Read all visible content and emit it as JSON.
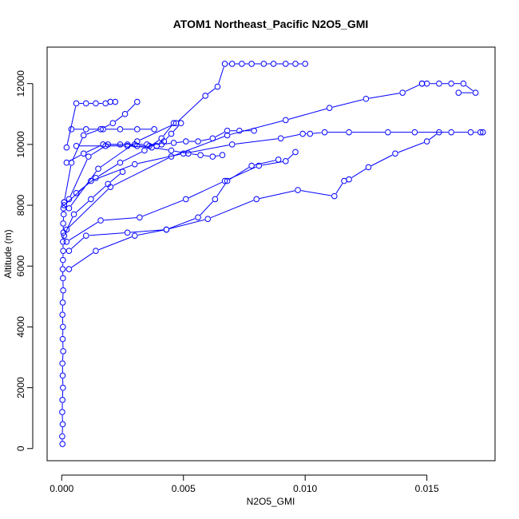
{
  "chart_data": {
    "type": "line",
    "title": "ATOM1 Northeast_Pacific N2O5_GMI",
    "xlabel": "N2O5_GMI",
    "ylabel": "Altitude (m)",
    "xlim": [
      -0.0006,
      0.0178
    ],
    "ylim": [
      -400,
      13200
    ],
    "x_ticks": [
      0.0,
      0.005,
      0.01,
      0.015
    ],
    "x_tick_labels": [
      "0.000",
      "0.005",
      "0.010",
      "0.015"
    ],
    "y_ticks": [
      0,
      2000,
      4000,
      6000,
      8000,
      10000,
      12000
    ],
    "y_tick_labels": [
      "0",
      "2000",
      "4000",
      "6000",
      "8000",
      "10000",
      "12000"
    ],
    "grid": false,
    "style": {
      "color": "#0000ff",
      "marker": "open-circle",
      "line": "solid"
    },
    "series": [
      {
        "x": [
          3e-05,
          2e-05,
          4e-05,
          2e-05,
          3e-05,
          5e-05,
          4e-05,
          3e-05,
          6e-05,
          4e-05,
          5e-05,
          3e-05,
          4e-05,
          6e-05,
          5e-05,
          4e-05,
          5e-05,
          6e-05,
          5e-05,
          7e-05,
          6e-05,
          8e-05,
          7e-05,
          0.0001
        ],
        "y": [
          150,
          400,
          800,
          1200,
          1600,
          2000,
          2400,
          2800,
          3200,
          3600,
          4000,
          4400,
          4800,
          5200,
          5600,
          5900,
          6200,
          6500,
          6800,
          7100,
          7400,
          7700,
          7900,
          8100
        ]
      },
      {
        "x": [
          0.0001,
          0.0004,
          0.0009,
          0.0016,
          0.0021,
          0.0026,
          0.0031
        ],
        "y": [
          8100,
          9400,
          10300,
          10500,
          10700,
          11000,
          11400
        ]
      },
      {
        "x": [
          0.0002,
          0.0006,
          0.001,
          0.0014,
          0.0018,
          0.002,
          0.0022
        ],
        "y": [
          9900,
          11350,
          11350,
          11350,
          11350,
          11400,
          11400
        ]
      },
      {
        "x": [
          0.0002,
          0.0009,
          0.0017,
          0.0024,
          0.003,
          0.0035,
          0.0041,
          0.0046,
          0.0051,
          0.0056,
          0.0062,
          0.0068,
          0.0073,
          0.0079
        ],
        "y": [
          9400,
          9700,
          10000,
          10000,
          10000,
          10000,
          10000,
          10050,
          10100,
          10100,
          10200,
          10450,
          10450,
          10450
        ]
      },
      {
        "x": [
          0.0003,
          0.0011,
          0.0019,
          0.0027,
          0.0031,
          0.0036,
          0.0039,
          0.0042,
          0.0045,
          0.0049
        ],
        "y": [
          8200,
          9600,
          10000,
          10000,
          9950,
          9950,
          9950,
          10100,
          10350,
          10700
        ]
      },
      {
        "x": [
          0.0003,
          0.0015,
          0.0031,
          0.0047,
          0.0059,
          0.0064,
          0.0067,
          0.007,
          0.0074,
          0.0078,
          0.0083,
          0.0087,
          0.0092,
          0.0096,
          0.01
        ],
        "y": [
          7900,
          9200,
          10100,
          10700,
          11600,
          11900,
          12650,
          12650,
          12650,
          12650,
          12650,
          12650,
          12650,
          12650,
          12650
        ]
      },
      {
        "x": [
          0.0002,
          0.002,
          0.0045,
          0.0068,
          0.0092,
          0.011,
          0.0125,
          0.014,
          0.0148
        ],
        "y": [
          7200,
          8600,
          9600,
          10300,
          10800,
          11200,
          11500,
          11700,
          12000
        ]
      },
      {
        "x": [
          0.0148,
          0.015,
          0.0155,
          0.016,
          0.0165,
          0.017,
          0.0163
        ],
        "y": [
          12000,
          12000,
          12000,
          12000,
          12000,
          11700,
          11700
        ]
      },
      {
        "x": [
          0.0001,
          0.0012,
          0.003,
          0.005,
          0.007,
          0.009,
          0.0099,
          0.0102,
          0.0108,
          0.0118,
          0.0134,
          0.0145,
          0.016,
          0.0168,
          0.0172,
          0.0173
        ],
        "y": [
          8000,
          8800,
          9350,
          9700,
          10000,
          10200,
          10350,
          10350,
          10400,
          10400,
          10400,
          10400,
          10400,
          10400,
          10400,
          10400
        ]
      },
      {
        "x": [
          0.0002,
          0.0016,
          0.0032,
          0.0051,
          0.0067,
          0.0081,
          0.0092,
          0.0096
        ],
        "y": [
          6800,
          7500,
          7600,
          8200,
          8800,
          9300,
          9450,
          9750
        ]
      },
      {
        "x": [
          0.0003,
          0.001,
          0.0027,
          0.0043,
          0.006,
          0.008,
          0.0097,
          0.0112,
          0.0116,
          0.0118,
          0.0126,
          0.0137,
          0.015,
          0.0155
        ],
        "y": [
          6500,
          7000,
          7100,
          7200,
          7550,
          8200,
          8500,
          8300,
          8800,
          8850,
          9250,
          9700,
          10100,
          10400
        ]
      },
      {
        "x": [
          0.0003,
          0.0014,
          0.003,
          0.0043,
          0.0056,
          0.0063,
          0.0068,
          0.0078,
          0.0089
        ],
        "y": [
          5900,
          6500,
          7000,
          7200,
          7600,
          8200,
          8800,
          9300,
          9500
        ]
      },
      {
        "x": [
          0.0006,
          0.0018,
          0.0027,
          0.0037,
          0.0045,
          0.0052,
          0.0057,
          0.0062,
          0.0066
        ],
        "y": [
          9950,
          9950,
          9950,
          9900,
          9800,
          9700,
          9650,
          9600,
          9650
        ]
      },
      {
        "x": [
          0.0004,
          0.001,
          0.0017,
          0.0024,
          0.0031,
          0.0038
        ],
        "y": [
          10500,
          10500,
          10500,
          10500,
          10500,
          10500
        ]
      },
      {
        "x": [
          0.0006,
          0.0014,
          0.0024,
          0.0034,
          0.0041,
          0.0046
        ],
        "y": [
          8400,
          8900,
          9400,
          9800,
          10200,
          10700
        ]
      },
      {
        "x": [
          0.0001,
          0.0005,
          0.0012,
          0.0019,
          0.0025
        ],
        "y": [
          7000,
          7700,
          8200,
          8700,
          9100
        ]
      }
    ]
  }
}
